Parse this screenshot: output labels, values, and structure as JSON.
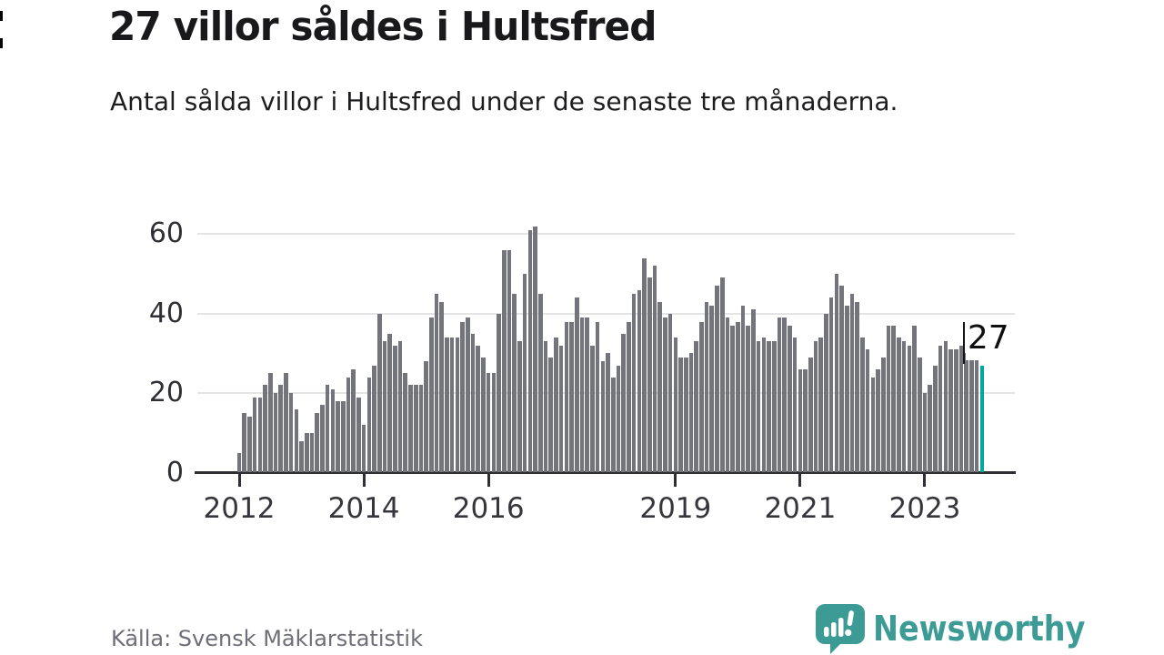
{
  "header": {
    "title": "27 villor såldes i Hultsfred",
    "subtitle": "Antal sålda villor i Hultsfred under de senaste tre månaderna."
  },
  "chart_data": {
    "type": "bar",
    "title": "27 villor såldes i Hultsfred",
    "x_start": "2012-01",
    "x_end": "2023-12",
    "frequency": "monthly",
    "values": [
      5,
      15,
      14,
      19,
      19,
      22,
      25,
      20,
      22,
      25,
      20,
      16,
      8,
      10,
      10,
      15,
      17,
      22,
      21,
      18,
      18,
      24,
      26,
      19,
      12,
      24,
      27,
      40,
      33,
      35,
      32,
      33,
      25,
      22,
      22,
      22,
      28,
      39,
      45,
      43,
      34,
      34,
      34,
      38,
      39,
      35,
      32,
      29,
      25,
      25,
      40,
      56,
      56,
      45,
      33,
      50,
      61,
      62,
      45,
      33,
      29,
      34,
      32,
      38,
      38,
      44,
      39,
      39,
      32,
      38,
      28,
      30,
      24,
      27,
      35,
      38,
      45,
      46,
      54,
      49,
      52,
      43,
      39,
      40,
      34,
      29,
      29,
      30,
      33,
      38,
      43,
      42,
      47,
      49,
      39,
      37,
      38,
      42,
      37,
      41,
      33,
      34,
      33,
      33,
      39,
      39,
      37,
      34,
      26,
      26,
      29,
      33,
      34,
      40,
      44,
      50,
      47,
      42,
      45,
      43,
      34,
      31,
      24,
      26,
      29,
      37,
      37,
      34,
      33,
      32,
      37,
      29,
      20,
      22,
      27,
      32,
      33,
      31,
      31,
      32,
      30,
      30,
      29,
      27
    ],
    "ylim": [
      0,
      65
    ],
    "yticks": [
      0,
      20,
      40,
      60
    ],
    "xticks": [
      {
        "label": "2012",
        "month_index": 0
      },
      {
        "label": "2014",
        "month_index": 24
      },
      {
        "label": "2016",
        "month_index": 48
      },
      {
        "label": "2019",
        "month_index": 84
      },
      {
        "label": "2021",
        "month_index": 108
      },
      {
        "label": "2023",
        "month_index": 132
      }
    ],
    "grid": "horizontal",
    "legend": "none",
    "bar_color": "#74747c",
    "highlight": {
      "index": 143,
      "value": 27,
      "label": "27",
      "color": "#00a79b"
    }
  },
  "footer": {
    "source": "Källa: Svensk Mäklarstatistik",
    "logo_text": "Newsworthy",
    "logo_color": "#3d9b95"
  }
}
